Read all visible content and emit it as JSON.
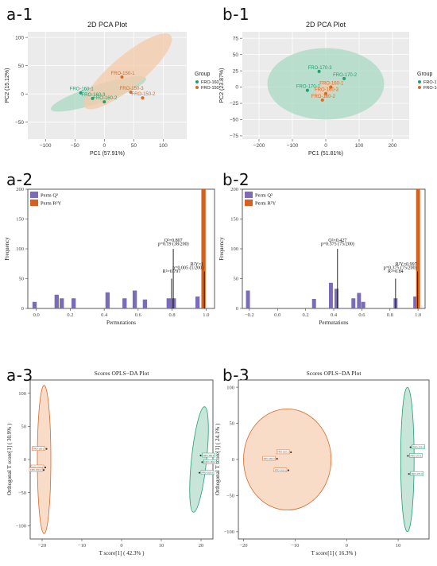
{
  "panel_labels": [
    "a-1",
    "b-1",
    "a-2",
    "b-2",
    "a-3",
    "b-3"
  ],
  "colors": {
    "green": "#1f9e6f",
    "orange": "#d8692a",
    "green_fill": "#a9d9c4",
    "orange_fill": "#f5c9aa",
    "purple": "#7a6cb8",
    "orange_bar": "#d7601c"
  },
  "chart_data": [
    {
      "id": "a1",
      "type": "scatter",
      "title": "2D PCA Plot",
      "xlabel": "PC1 (57.91%)",
      "ylabel": "PC2 (15.12%)",
      "xlim": [
        -130,
        140
      ],
      "ylim": [
        -80,
        110
      ],
      "xticks": [
        -100,
        -50,
        0,
        50,
        100
      ],
      "yticks": [
        -50,
        0,
        50,
        100
      ],
      "grid": true,
      "legend": {
        "title": "Group",
        "entries": [
          "FRO-160",
          "FRO-150"
        ],
        "placement": "right"
      },
      "ellipses": [
        {
          "group": "FRO-160",
          "cx": -10,
          "cy": 0,
          "rx": 85,
          "ry": 16,
          "angle": -18
        },
        {
          "group": "FRO-150",
          "cx": 40,
          "cy": 40,
          "rx": 95,
          "ry": 28,
          "angle": -40
        }
      ],
      "series": [
        {
          "name": "FRO-160",
          "points": [
            {
              "label": "FRO-160-1",
              "x": -40,
              "y": 2
            },
            {
              "label": "FRO-160-3",
              "x": -20,
              "y": -8
            },
            {
              "label": "FRO-160-2",
              "x": 0,
              "y": -14
            }
          ]
        },
        {
          "name": "FRO-150",
          "points": [
            {
              "label": "FRO-150-1",
              "x": 30,
              "y": 30
            },
            {
              "label": "FRO-150-3",
              "x": 45,
              "y": 3
            },
            {
              "label": "FRO-150-2",
              "x": 65,
              "y": -7
            }
          ]
        }
      ]
    },
    {
      "id": "b1",
      "type": "scatter",
      "title": "2D PCA Plot",
      "xlabel": "PC1 (51.81%)",
      "ylabel": "PC2 (23.87%)",
      "xlim": [
        -250,
        250
      ],
      "ylim": [
        -80,
        85
      ],
      "xticks": [
        -200,
        -100,
        0,
        100,
        200
      ],
      "yticks": [
        -75,
        -50,
        -25,
        0,
        25,
        50,
        75
      ],
      "grid": true,
      "legend": {
        "title": "Group",
        "entries": [
          "FRO-170",
          "FRO-160"
        ],
        "placement": "right"
      },
      "ellipses": [
        {
          "group": "FRO-170",
          "cx": 0,
          "cy": 5,
          "rx": 175,
          "ry": 55,
          "angle": 0
        },
        {
          "group": "FRO-160",
          "cx": 0,
          "cy": -4,
          "rx": 35,
          "ry": 9,
          "angle": -30
        }
      ],
      "series": [
        {
          "name": "FRO-170",
          "points": [
            {
              "label": "FRO-170-3",
              "x": -20,
              "y": 24
            },
            {
              "label": "FRO-170-2",
              "x": 55,
              "y": 13
            },
            {
              "label": "FRO-170-1",
              "x": -55,
              "y": -5
            }
          ]
        },
        {
          "name": "FRO-160",
          "points": [
            {
              "label": "FRO-160-1",
              "x": 15,
              "y": 0
            },
            {
              "label": "FRO-160-3",
              "x": 0,
              "y": -10
            },
            {
              "label": "FRO-160-2",
              "x": -10,
              "y": -20
            }
          ]
        }
      ]
    },
    {
      "id": "a2",
      "type": "bar",
      "xlabel": "Permutations",
      "ylabel": "Frequency",
      "xlim": [
        -0.05,
        1.05
      ],
      "ylim": [
        0,
        200
      ],
      "xticks": [
        0.0,
        0.2,
        0.4,
        0.6,
        0.8,
        1.0
      ],
      "yticks": [
        0,
        50,
        100,
        150,
        200
      ],
      "legend": {
        "entries": [
          "Perm Q²",
          "Perm R²Y"
        ],
        "placement": "top-left"
      },
      "bar_width": 0.025,
      "series": [
        {
          "name": "Perm Q²",
          "bars": [
            {
              "x": -0.01,
              "value": 11
            },
            {
              "x": 0.12,
              "value": 23
            },
            {
              "x": 0.15,
              "value": 17
            },
            {
              "x": 0.22,
              "value": 17
            },
            {
              "x": 0.42,
              "value": 27
            },
            {
              "x": 0.52,
              "value": 17
            },
            {
              "x": 0.58,
              "value": 30
            },
            {
              "x": 0.64,
              "value": 15
            },
            {
              "x": 0.78,
              "value": 17
            },
            {
              "x": 0.81,
              "value": 17
            },
            {
              "x": 0.95,
              "value": 20
            }
          ]
        },
        {
          "name": "Perm R²Y",
          "bars": [
            {
              "x": 0.985,
              "value": 200
            }
          ]
        }
      ],
      "annotations": [
        {
          "text": "Q²=0.807",
          "x": 0.807,
          "y": 112
        },
        {
          "text": "p=0.19 (38/200)",
          "x": 0.807,
          "y": 106
        },
        {
          "text": "R²=0.797",
          "x": 0.797,
          "y": 60
        },
        {
          "text": "R²Y=1",
          "x": 0.99,
          "y": 72
        },
        {
          "text": "p=0.005 (1/200)",
          "x": 0.99,
          "y": 66
        }
      ],
      "markers": [
        0.807,
        0.797,
        0.99
      ]
    },
    {
      "id": "b2",
      "type": "bar",
      "xlabel": "Permutations",
      "ylabel": "Frequency",
      "xlim": [
        -0.25,
        1.05
      ],
      "ylim": [
        0,
        200
      ],
      "xticks": [
        -0.2,
        0.0,
        0.2,
        0.4,
        0.6,
        0.8,
        1.0
      ],
      "yticks": [
        0,
        50,
        100,
        150,
        200
      ],
      "legend": {
        "entries": [
          "Perm Q²",
          "Perm R²Y"
        ],
        "placement": "top-left"
      },
      "bar_width": 0.028,
      "series": [
        {
          "name": "Perm Q²",
          "bars": [
            {
              "x": -0.21,
              "value": 30
            },
            {
              "x": 0.26,
              "value": 16
            },
            {
              "x": 0.38,
              "value": 43
            },
            {
              "x": 0.42,
              "value": 33
            },
            {
              "x": 0.54,
              "value": 17
            },
            {
              "x": 0.58,
              "value": 26
            },
            {
              "x": 0.61,
              "value": 11
            },
            {
              "x": 0.84,
              "value": 17
            },
            {
              "x": 0.98,
              "value": 20
            }
          ]
        },
        {
          "name": "Perm R²Y",
          "bars": [
            {
              "x": 1.0,
              "value": 200
            }
          ]
        }
      ],
      "annotations": [
        {
          "text": "Q²=0.427",
          "x": 0.427,
          "y": 112
        },
        {
          "text": "p=0.375 (75/200)",
          "x": 0.427,
          "y": 106
        },
        {
          "text": "R²=0.84",
          "x": 0.84,
          "y": 60
        },
        {
          "text": "R²Y=0.997",
          "x": 0.997,
          "y": 72
        },
        {
          "text": "p=0.375 (75/200)",
          "x": 0.997,
          "y": 66
        }
      ],
      "markers": [
        0.427,
        0.84,
        0.997
      ]
    },
    {
      "id": "a3",
      "type": "scatter",
      "title": "Scores OPLS−DA Plot",
      "xlabel": "T score[1] ( 42.3% )",
      "ylabel": "Orthogonal T score[1] ( 30.9% )",
      "xlim": [
        -23,
        23
      ],
      "ylim": [
        -120,
        120
      ],
      "xticks": [
        -20,
        -10,
        0,
        10,
        20
      ],
      "yticks": [
        -100,
        -50,
        0,
        50,
        100
      ],
      "ellipses": [
        {
          "group": "FRO-150",
          "cx": -19.5,
          "cy": 0,
          "rx": 1.7,
          "ry": 112,
          "angle": 0
        },
        {
          "group": "FRO-160",
          "cx": 19.5,
          "cy": 0,
          "rx": 1.9,
          "ry": 80,
          "angle": 6
        }
      ],
      "series": [
        {
          "name": "FRO-150",
          "points": [
            {
              "label": "FRO-150-1",
              "x": -18.9,
              "y": 16
            },
            {
              "label": "FRO-150-3",
              "x": -19.2,
              "y": -12
            },
            {
              "label": "FRO-150-2",
              "x": -19.6,
              "y": -16
            }
          ]
        },
        {
          "name": "FRO-160",
          "points": [
            {
              "label": "FRO-160-1",
              "x": 19.9,
              "y": 6
            },
            {
              "label": "FRO-160-2",
              "x": 20.3,
              "y": -4
            },
            {
              "label": "FRO-160-3",
              "x": 19.6,
              "y": -20
            }
          ]
        }
      ]
    },
    {
      "id": "b3",
      "type": "scatter",
      "title": "Scores OPLS−DA Plot",
      "xlabel": "T score[1] ( 16.3% )",
      "ylabel": "Orthogonal T score[1] ( 24.1% )",
      "xlim": [
        -21,
        16
      ],
      "ylim": [
        -110,
        110
      ],
      "xticks": [
        -20,
        -10,
        0,
        10
      ],
      "yticks": [
        -100,
        -50,
        0,
        50,
        100
      ],
      "ellipses": [
        {
          "group": "FRO-160",
          "cx": -11.5,
          "cy": 0,
          "rx": 8.5,
          "ry": 70,
          "angle": 0
        },
        {
          "group": "FRO-170",
          "cx": 11.8,
          "cy": 0,
          "rx": 1.3,
          "ry": 100,
          "angle": 0
        }
      ],
      "series": [
        {
          "name": "FRO-160",
          "points": [
            {
              "label": "FRO-160-1",
              "x": -10.8,
              "y": 10
            },
            {
              "label": "FRO-160-3",
              "x": -13.5,
              "y": 1
            },
            {
              "label": "FRO-160-2",
              "x": -11.3,
              "y": -15
            }
          ]
        },
        {
          "name": "FRO-170",
          "points": [
            {
              "label": "FRO-170-2",
              "x": 12.4,
              "y": 17
            },
            {
              "label": "FRO-170-1",
              "x": 11.9,
              "y": 5
            },
            {
              "label": "FRO-170-3",
              "x": 12.1,
              "y": -20
            }
          ]
        }
      ]
    }
  ]
}
